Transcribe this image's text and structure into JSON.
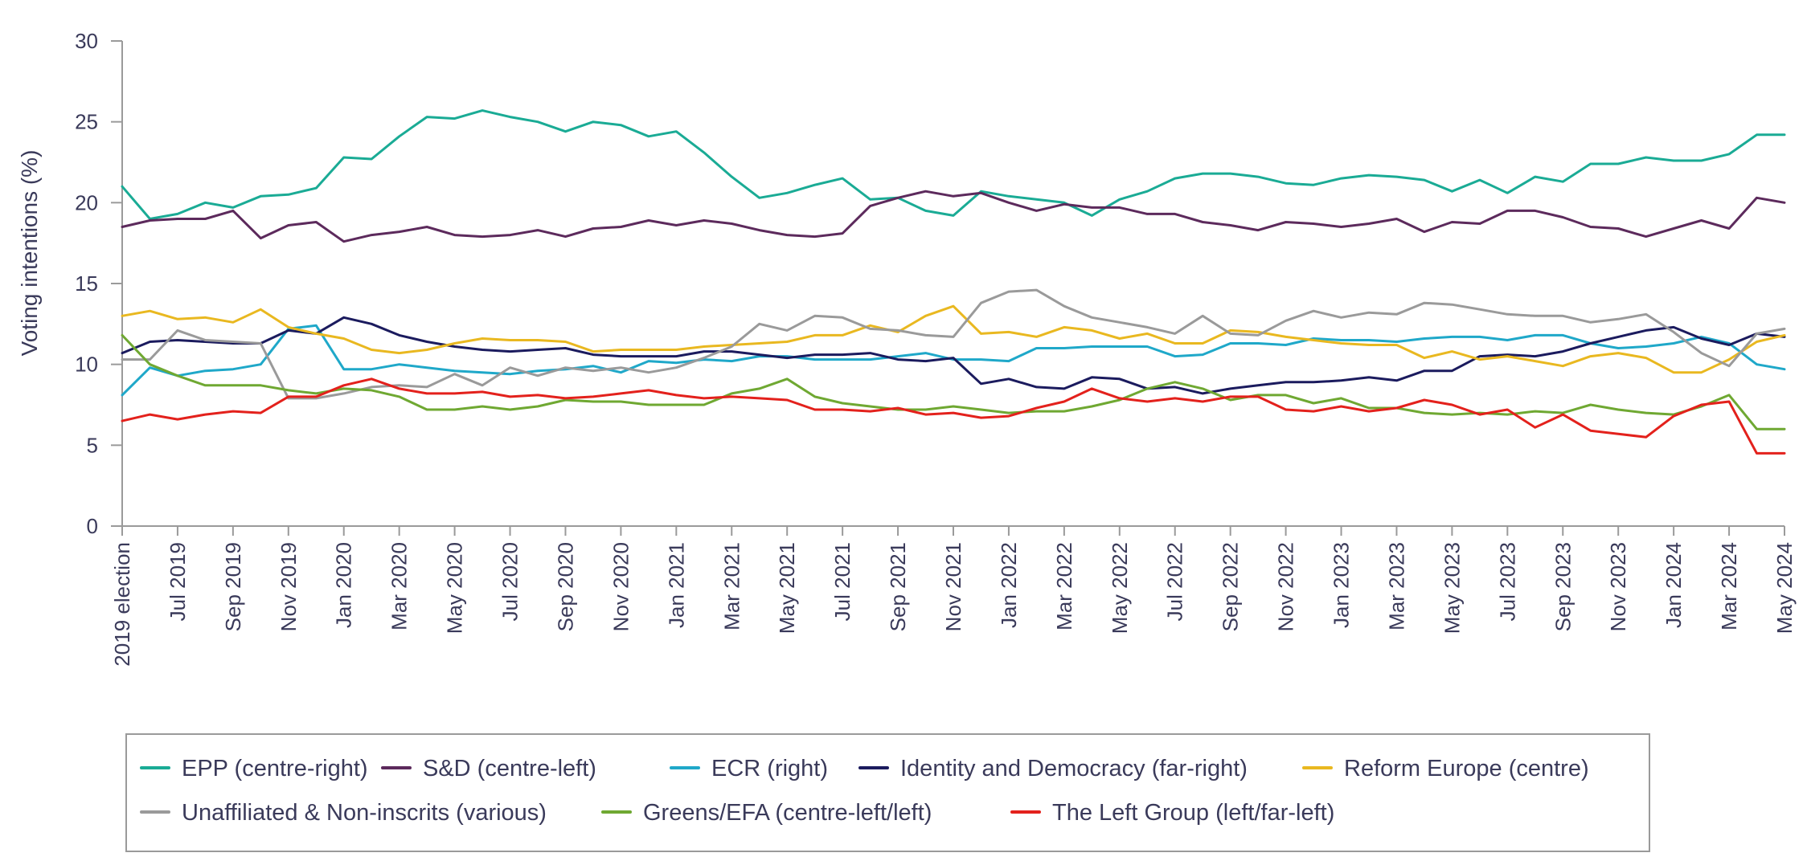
{
  "chart_data": {
    "type": "line",
    "title": "",
    "xlabel": "",
    "ylabel": "Voting intentions (%)",
    "ylim": [
      0,
      30
    ],
    "yticks": [
      0,
      5,
      10,
      15,
      20,
      25,
      30
    ],
    "ytick_labels": [
      "0",
      "5",
      "10",
      "15",
      "20",
      "25",
      "30"
    ],
    "grid": false,
    "legend_position": "bottom",
    "x": [
      "2019 election",
      "Jun 2019",
      "Jul 2019",
      "Aug 2019",
      "Sep 2019",
      "Oct 2019",
      "Nov 2019",
      "Dec 2019",
      "Jan 2020",
      "Feb 2020",
      "Mar 2020",
      "Apr 2020",
      "May 2020",
      "Jun 2020",
      "Jul 2020",
      "Aug 2020",
      "Sep 2020",
      "Oct 2020",
      "Nov 2020",
      "Dec 2020",
      "Jan 2021",
      "Feb 2021",
      "Mar 2021",
      "Apr 2021",
      "May 2021",
      "Jun 2021",
      "Jul 2021",
      "Aug 2021",
      "Sep 2021",
      "Oct 2021",
      "Nov 2021",
      "Dec 2021",
      "Jan 2022",
      "Feb 2022",
      "Mar 2022",
      "Apr 2022",
      "May 2022",
      "Jun 2022",
      "Jul 2022",
      "Aug 2022",
      "Sep 2022",
      "Oct 2022",
      "Nov 2022",
      "Dec 2022",
      "Jan 2023",
      "Feb 2023",
      "Mar 2023",
      "Apr 2023",
      "May 2023",
      "Jun 2023",
      "Jul 2023",
      "Aug 2023",
      "Sep 2023",
      "Oct 2023",
      "Nov 2023",
      "Dec 2023",
      "Jan 2024",
      "Feb 2024",
      "Mar 2024",
      "Apr 2024",
      "May 2024"
    ],
    "xtick_labels": [
      {
        "index": 0,
        "label": "2019 election"
      },
      {
        "index": 2,
        "label": "Jul 2019"
      },
      {
        "index": 4,
        "label": "Sep 2019"
      },
      {
        "index": 6,
        "label": "Nov 2019"
      },
      {
        "index": 8,
        "label": "Jan 2020"
      },
      {
        "index": 10,
        "label": "Mar 2020"
      },
      {
        "index": 12,
        "label": "May 2020"
      },
      {
        "index": 14,
        "label": "Jul 2020"
      },
      {
        "index": 16,
        "label": "Sep 2020"
      },
      {
        "index": 18,
        "label": "Nov 2020"
      },
      {
        "index": 20,
        "label": "Jan 2021"
      },
      {
        "index": 22,
        "label": "Mar 2021"
      },
      {
        "index": 24,
        "label": "May 2021"
      },
      {
        "index": 26,
        "label": "Jul 2021"
      },
      {
        "index": 28,
        "label": "Sep 2021"
      },
      {
        "index": 30,
        "label": "Nov 2021"
      },
      {
        "index": 32,
        "label": "Jan 2022"
      },
      {
        "index": 34,
        "label": "Mar 2022"
      },
      {
        "index": 36,
        "label": "May 2022"
      },
      {
        "index": 38,
        "label": "Jul 2022"
      },
      {
        "index": 40,
        "label": "Sep 2022"
      },
      {
        "index": 42,
        "label": "Nov 2022"
      },
      {
        "index": 44,
        "label": "Jan 2023"
      },
      {
        "index": 46,
        "label": "Mar 2023"
      },
      {
        "index": 48,
        "label": "May 2023"
      },
      {
        "index": 50,
        "label": "Jul 2023"
      },
      {
        "index": 52,
        "label": "Sep 2023"
      },
      {
        "index": 54,
        "label": "Nov 2023"
      },
      {
        "index": 56,
        "label": "Jan 2024"
      },
      {
        "index": 58,
        "label": "Mar 2024"
      },
      {
        "index": 60,
        "label": "May 2024"
      }
    ],
    "series": [
      {
        "name": "EPP (centre-right)",
        "color": "#1aab95",
        "values": [
          21.0,
          19.0,
          19.3,
          20.0,
          19.7,
          20.4,
          20.5,
          20.9,
          22.8,
          22.7,
          24.1,
          25.3,
          25.2,
          25.7,
          25.3,
          25.0,
          24.4,
          25.0,
          24.8,
          24.1,
          24.4,
          23.1,
          21.6,
          20.3,
          20.6,
          21.1,
          21.5,
          20.2,
          20.3,
          19.5,
          19.2,
          20.7,
          20.4,
          20.2,
          20.0,
          19.2,
          20.2,
          20.7,
          21.5,
          21.8,
          21.8,
          21.6,
          21.2,
          21.1,
          21.5,
          21.7,
          21.6,
          21.4,
          20.7,
          21.4,
          20.6,
          21.6,
          21.3,
          22.4,
          22.4,
          22.8,
          22.6,
          22.6,
          23.0,
          24.2,
          24.2
        ]
      },
      {
        "name": "S&D (centre-left)",
        "color": "#5c2a5c",
        "values": [
          18.5,
          18.9,
          19.0,
          19.0,
          19.5,
          17.8,
          18.6,
          18.8,
          17.6,
          18.0,
          18.2,
          18.5,
          18.0,
          17.9,
          18.0,
          18.3,
          17.9,
          18.4,
          18.5,
          18.9,
          18.6,
          18.9,
          18.7,
          18.3,
          18.0,
          17.9,
          18.1,
          19.8,
          20.3,
          20.7,
          20.4,
          20.6,
          20.0,
          19.5,
          19.9,
          19.7,
          19.7,
          19.3,
          19.3,
          18.8,
          18.6,
          18.3,
          18.8,
          18.7,
          18.5,
          18.7,
          19.0,
          18.2,
          18.8,
          18.7,
          19.5,
          19.5,
          19.1,
          18.5,
          18.4,
          17.9,
          18.4,
          18.9,
          18.4,
          20.3,
          20.0
        ]
      },
      {
        "name": "ECR (right)",
        "color": "#1fa8c9",
        "values": [
          8.1,
          9.8,
          9.3,
          9.6,
          9.7,
          10.0,
          12.2,
          12.4,
          9.7,
          9.7,
          10.0,
          9.8,
          9.6,
          9.5,
          9.4,
          9.6,
          9.7,
          9.9,
          9.5,
          10.2,
          10.1,
          10.3,
          10.2,
          10.5,
          10.5,
          10.3,
          10.3,
          10.3,
          10.5,
          10.7,
          10.3,
          10.3,
          10.2,
          11.0,
          11.0,
          11.1,
          11.1,
          11.1,
          10.5,
          10.6,
          11.3,
          11.3,
          11.2,
          11.6,
          11.5,
          11.5,
          11.4,
          11.6,
          11.7,
          11.7,
          11.5,
          11.8,
          11.8,
          11.3,
          11.0,
          11.1,
          11.3,
          11.7,
          11.3,
          10.0,
          9.7
        ]
      },
      {
        "name": "Identity and Democracy (far-right)",
        "color": "#1b1b5e",
        "values": [
          10.7,
          11.4,
          11.5,
          11.4,
          11.3,
          11.3,
          12.1,
          11.9,
          12.9,
          12.5,
          11.8,
          11.4,
          11.1,
          10.9,
          10.8,
          10.9,
          11.0,
          10.6,
          10.5,
          10.5,
          10.5,
          10.8,
          10.8,
          10.6,
          10.4,
          10.6,
          10.6,
          10.7,
          10.3,
          10.2,
          10.4,
          8.8,
          9.1,
          8.6,
          8.5,
          9.2,
          9.1,
          8.5,
          8.6,
          8.2,
          8.5,
          8.7,
          8.9,
          8.9,
          9.0,
          9.2,
          9.0,
          9.6,
          9.6,
          10.5,
          10.6,
          10.5,
          10.8,
          11.3,
          11.7,
          12.1,
          12.3,
          11.6,
          11.2,
          11.9,
          11.7
        ]
      },
      {
        "name": "Reform Europe (centre)",
        "color": "#e9b820",
        "values": [
          13.0,
          13.3,
          12.8,
          12.9,
          12.6,
          13.4,
          12.3,
          11.9,
          11.6,
          10.9,
          10.7,
          10.9,
          11.3,
          11.6,
          11.5,
          11.5,
          11.4,
          10.8,
          10.9,
          10.9,
          10.9,
          11.1,
          11.2,
          11.3,
          11.4,
          11.8,
          11.8,
          12.4,
          12.0,
          13.0,
          13.6,
          11.9,
          12.0,
          11.7,
          12.3,
          12.1,
          11.6,
          11.9,
          11.3,
          11.3,
          12.1,
          12.0,
          11.7,
          11.5,
          11.3,
          11.2,
          11.2,
          10.4,
          10.8,
          10.3,
          10.5,
          10.2,
          9.9,
          10.5,
          10.7,
          10.4,
          9.5,
          9.5,
          10.3,
          11.4,
          11.8
        ]
      },
      {
        "name": "Unaffiliated & Non-inscrits (various)",
        "color": "#9a9a9a",
        "values": [
          10.3,
          10.3,
          12.1,
          11.5,
          11.4,
          11.3,
          7.9,
          7.9,
          8.2,
          8.6,
          8.7,
          8.6,
          9.4,
          8.7,
          9.8,
          9.3,
          9.8,
          9.6,
          9.8,
          9.5,
          9.8,
          10.4,
          11.1,
          12.5,
          12.1,
          13.0,
          12.9,
          12.2,
          12.1,
          11.8,
          11.7,
          13.8,
          14.5,
          14.6,
          13.6,
          12.9,
          12.6,
          12.3,
          11.9,
          13.0,
          11.9,
          11.8,
          12.7,
          13.3,
          12.9,
          13.2,
          13.1,
          13.8,
          13.7,
          13.4,
          13.1,
          13.0,
          13.0,
          12.6,
          12.8,
          13.1,
          12.0,
          10.7,
          9.9,
          11.9,
          12.2
        ]
      },
      {
        "name": "Greens/EFA (centre-left/left)",
        "color": "#6fa832",
        "values": [
          11.8,
          10.0,
          9.3,
          8.7,
          8.7,
          8.7,
          8.4,
          8.2,
          8.5,
          8.4,
          8.0,
          7.2,
          7.2,
          7.4,
          7.2,
          7.4,
          7.8,
          7.7,
          7.7,
          7.5,
          7.5,
          7.5,
          8.2,
          8.5,
          9.1,
          8.0,
          7.6,
          7.4,
          7.2,
          7.2,
          7.4,
          7.2,
          7.0,
          7.1,
          7.1,
          7.4,
          7.8,
          8.5,
          8.9,
          8.5,
          7.8,
          8.1,
          8.1,
          7.6,
          7.9,
          7.3,
          7.3,
          7.0,
          6.9,
          7.0,
          6.9,
          7.1,
          7.0,
          7.5,
          7.2,
          7.0,
          6.9,
          7.4,
          8.1,
          6.0,
          6.0
        ]
      },
      {
        "name": "The Left Group (left/far-left)",
        "color": "#e3211c",
        "values": [
          6.5,
          6.9,
          6.6,
          6.9,
          7.1,
          7.0,
          8.0,
          8.0,
          8.7,
          9.1,
          8.5,
          8.2,
          8.2,
          8.3,
          8.0,
          8.1,
          7.9,
          8.0,
          8.2,
          8.4,
          8.1,
          7.9,
          8.0,
          7.9,
          7.8,
          7.2,
          7.2,
          7.1,
          7.3,
          6.9,
          7.0,
          6.7,
          6.8,
          7.3,
          7.7,
          8.5,
          7.9,
          7.7,
          7.9,
          7.7,
          8.0,
          8.0,
          7.2,
          7.1,
          7.4,
          7.1,
          7.3,
          7.8,
          7.5,
          6.9,
          7.2,
          6.1,
          6.9,
          5.9,
          5.7,
          5.5,
          6.8,
          7.5,
          7.7,
          4.5,
          4.5
        ]
      }
    ]
  }
}
